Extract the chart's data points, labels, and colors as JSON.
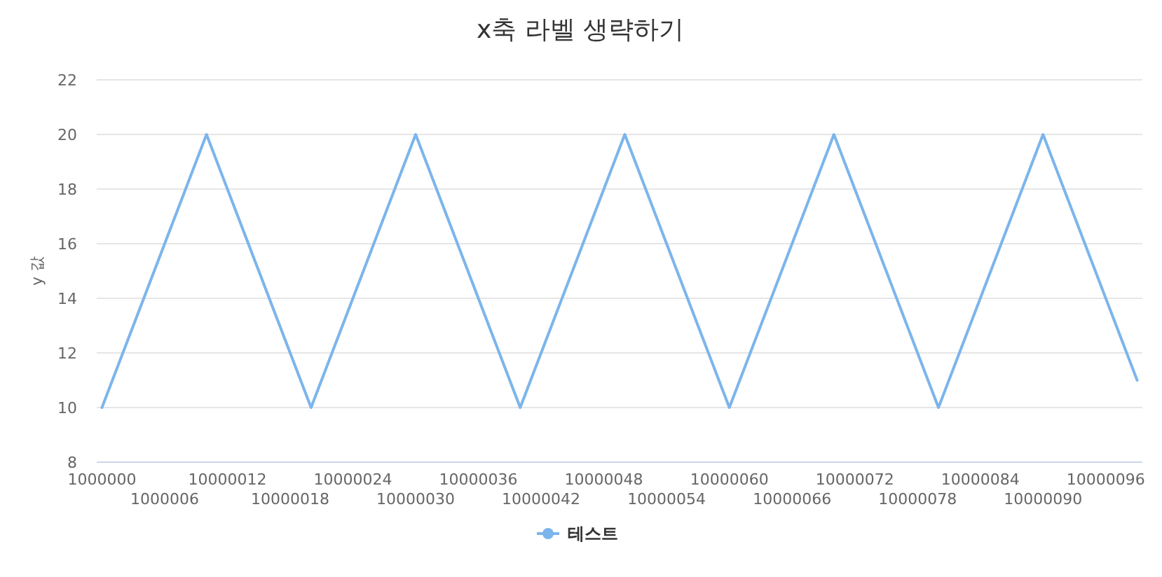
{
  "chart_data": {
    "type": "line",
    "title": "x축 라벨 생략하기",
    "ylabel": "y 값",
    "categories": [
      "1000000",
      null,
      null,
      null,
      null,
      null,
      "1000006",
      null,
      null,
      null,
      null,
      null,
      "10000012",
      null,
      null,
      null,
      null,
      null,
      "10000018",
      null,
      null,
      null,
      null,
      null,
      "10000024",
      null,
      null,
      null,
      null,
      null,
      "10000030",
      null,
      null,
      null,
      null,
      null,
      "10000036",
      null,
      null,
      null,
      null,
      null,
      "10000042",
      null,
      null,
      null,
      null,
      null,
      "10000048",
      null,
      null,
      null,
      null,
      null,
      "10000054",
      null,
      null,
      null,
      null,
      null,
      "10000060",
      null,
      null,
      null,
      null,
      null,
      "10000066",
      null,
      null,
      null,
      null,
      null,
      "10000072",
      null,
      null,
      null,
      null,
      null,
      "10000078",
      null,
      null,
      null,
      null,
      null,
      "10000084",
      null,
      null,
      null,
      null,
      null,
      "10000090",
      null,
      null,
      null,
      null,
      null,
      "10000096",
      null,
      null,
      null
    ],
    "series": [
      {
        "name": "테스트",
        "color": "#7cb5ec",
        "values": [
          10,
          11,
          12,
          13,
          14,
          15,
          16,
          17,
          18,
          19,
          20,
          19,
          18,
          17,
          16,
          15,
          14,
          13,
          12,
          11,
          10,
          11,
          12,
          13,
          14,
          15,
          16,
          17,
          18,
          19,
          20,
          19,
          18,
          17,
          16,
          15,
          14,
          13,
          12,
          11,
          10,
          11,
          12,
          13,
          14,
          15,
          16,
          17,
          18,
          19,
          20,
          19,
          18,
          17,
          16,
          15,
          14,
          13,
          12,
          11,
          10,
          11,
          12,
          13,
          14,
          15,
          16,
          17,
          18,
          19,
          20,
          19,
          18,
          17,
          16,
          15,
          14,
          13,
          12,
          11,
          10,
          11,
          12,
          13,
          14,
          15,
          16,
          17,
          18,
          19,
          20,
          19,
          18,
          17,
          16,
          15,
          14,
          13,
          12,
          11
        ]
      }
    ],
    "ylim": [
      8,
      22
    ],
    "yticks": [
      8,
      10,
      12,
      14,
      16,
      18,
      20,
      22
    ],
    "grid": "y",
    "legend": "bottom",
    "marker": "none",
    "line_style": "solid"
  }
}
